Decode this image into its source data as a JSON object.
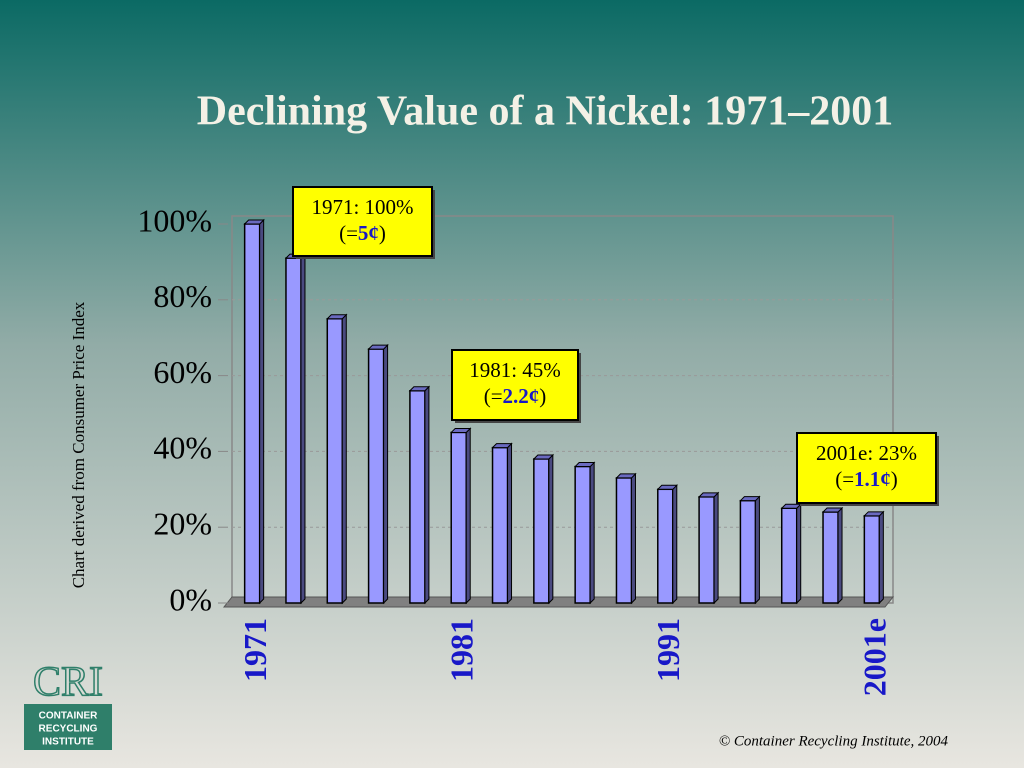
{
  "chart_data": {
    "type": "bar",
    "title": "Declining Value of a Nickel: 1971–2001",
    "y_label": "Chart derived from Consumer Price Index",
    "categories": [
      "1971",
      null,
      null,
      null,
      null,
      "1981",
      null,
      null,
      null,
      null,
      "1991",
      null,
      null,
      null,
      null,
      "2001e"
    ],
    "values": [
      100,
      91,
      75,
      67,
      56,
      45,
      41,
      38,
      36,
      33,
      30,
      28,
      27,
      25,
      24,
      23
    ],
    "color": "#9999ff",
    "ylim": [
      0,
      100
    ],
    "yticks": [
      {
        "value": 0,
        "label": "0%"
      },
      {
        "value": 20,
        "label": "20%"
      },
      {
        "value": 40,
        "label": "40%"
      },
      {
        "value": 60,
        "label": "60%"
      },
      {
        "value": 80,
        "label": "80%"
      },
      {
        "value": 100,
        "label": "100%"
      }
    ],
    "grid": true,
    "annotations": [
      {
        "text": "1971: 100%",
        "prefix": "(=",
        "price": "5¢",
        "suffix": ")"
      },
      {
        "text": "1981: 45%",
        "prefix": "(=",
        "price": "2.2¢",
        "suffix": ")"
      },
      {
        "text": "2001e: 23%",
        "prefix": "(=",
        "price": "1.1¢",
        "suffix": ")"
      }
    ]
  },
  "logo": {
    "mark": "CRI",
    "lines": [
      "CONTAINER",
      "RECYCLING",
      "INSTITUTE"
    ]
  },
  "footer": "©  Container Recycling Institute, 2004"
}
